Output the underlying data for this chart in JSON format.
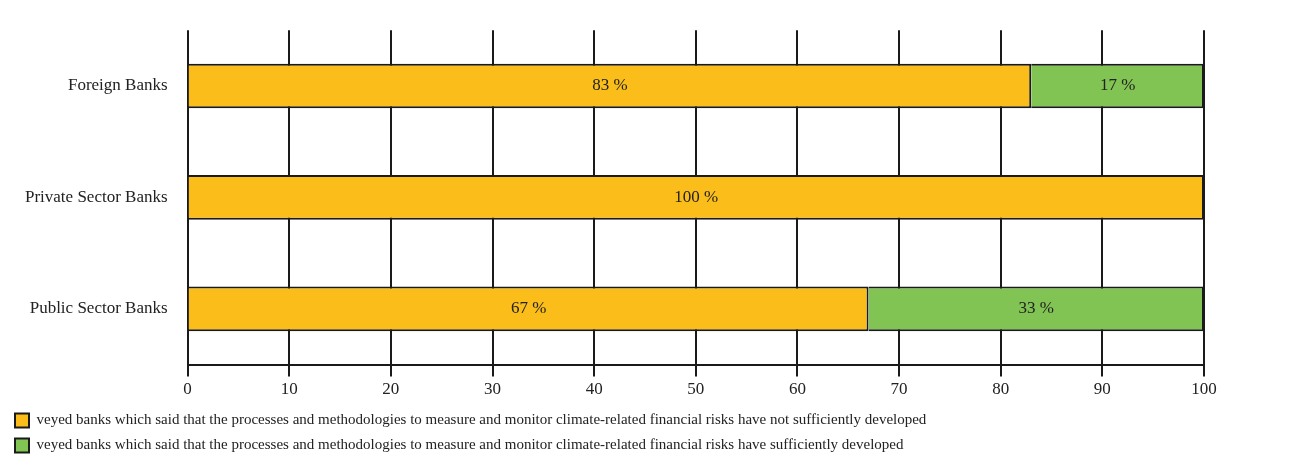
{
  "chart_data": {
    "type": "bar",
    "orientation": "horizontal",
    "stacked": true,
    "categories": [
      "Foreign Banks",
      "Private Sector Banks",
      "Public Sector Banks"
    ],
    "series": [
      {
        "name": "veyed banks which said that the processes and methodologies to measure and monitor climate-related financial risks have not sufficiently developed",
        "color": "#fbbd19",
        "values": [
          83,
          100,
          67
        ],
        "value_labels": [
          "83 %",
          "100 %",
          "67 %"
        ]
      },
      {
        "name": "veyed banks which said that the processes and methodologies to measure and monitor climate-related financial risks have sufficiently developed",
        "color": "#82c453",
        "values": [
          17,
          0,
          33
        ],
        "value_labels": [
          "17 %",
          null,
          "33 %"
        ]
      }
    ],
    "xlim": [
      0,
      100
    ],
    "xticks": [
      0,
      10,
      20,
      30,
      40,
      50,
      60,
      70,
      80,
      90,
      100
    ],
    "grid": "x",
    "legend": "bottom"
  }
}
